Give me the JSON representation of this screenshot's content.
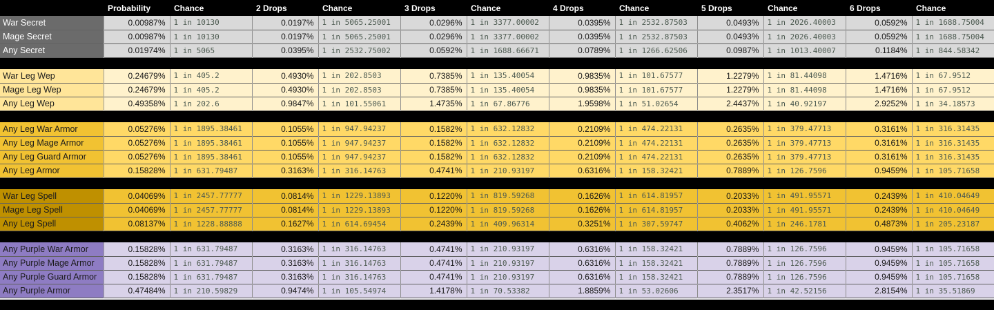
{
  "colors": {
    "page_background": "#000000",
    "header_bg": "#000000",
    "header_fg": "#ffffff",
    "percent_fg": "#161616",
    "chance_fg": "#4c5a50",
    "grid_line": "rgba(255,255,255,0.55)"
  },
  "table": {
    "columns": [
      "Probability",
      "Chance",
      "2 Drops",
      "Chance",
      "3 Drops",
      "Chance",
      "4 Drops",
      "Chance",
      "5 Drops",
      "Chance",
      "6 Drops",
      "Chance"
    ],
    "sections": [
      {
        "name": "secret",
        "label_bg": "#6b6b6b",
        "label_fg": "#ffffff",
        "data_bg": "#d9d9d9",
        "rows": [
          {
            "label": "War Secret",
            "cells": [
              "0.00987%",
              "1 in 10130",
              "0.0197%",
              "1 in 5065.25001",
              "0.0296%",
              "1 in 3377.00002",
              "0.0395%",
              "1 in 2532.87503",
              "0.0493%",
              "1 in 2026.40003",
              "0.0592%",
              "1 in 1688.75004"
            ]
          },
          {
            "label": "Mage Secret",
            "cells": [
              "0.00987%",
              "1 in 10130",
              "0.0197%",
              "1 in 5065.25001",
              "0.0296%",
              "1 in 3377.00002",
              "0.0395%",
              "1 in 2532.87503",
              "0.0493%",
              "1 in 2026.40003",
              "0.0592%",
              "1 in 1688.75004"
            ]
          },
          {
            "label": "Any Secret",
            "cells": [
              "0.01974%",
              "1 in 5065",
              "0.0395%",
              "1 in 2532.75002",
              "0.0592%",
              "1 in 1688.66671",
              "0.0789%",
              "1 in 1266.62506",
              "0.0987%",
              "1 in 1013.40007",
              "0.1184%",
              "1 in 844.58342"
            ]
          }
        ]
      },
      {
        "name": "leg-wep",
        "label_bg": "#ffe599",
        "label_fg": "#1b1b1b",
        "data_bg": "#fff2cc",
        "rows": [
          {
            "label": "War Leg Wep",
            "cells": [
              "0.24679%",
              "1 in 405.2",
              "0.4930%",
              "1 in 202.8503",
              "0.7385%",
              "1 in 135.40054",
              "0.9835%",
              "1 in 101.67577",
              "1.2279%",
              "1 in 81.44098",
              "1.4716%",
              "1 in 67.9512"
            ]
          },
          {
            "label": "Mage Leg Wep",
            "cells": [
              "0.24679%",
              "1 in 405.2",
              "0.4930%",
              "1 in 202.8503",
              "0.7385%",
              "1 in 135.40054",
              "0.9835%",
              "1 in 101.67577",
              "1.2279%",
              "1 in 81.44098",
              "1.4716%",
              "1 in 67.9512"
            ]
          },
          {
            "label": "Any Leg Wep",
            "cells": [
              "0.49358%",
              "1 in 202.6",
              "0.9847%",
              "1 in 101.55061",
              "1.4735%",
              "1 in 67.86776",
              "1.9598%",
              "1 in 51.02654",
              "2.4437%",
              "1 in 40.92197",
              "2.9252%",
              "1 in 34.18573"
            ]
          }
        ]
      },
      {
        "name": "leg-armor",
        "label_bg": "#f1c232",
        "label_fg": "#1b1b1b",
        "data_bg": "#ffd966",
        "rows": [
          {
            "label": "Any Leg War Armor",
            "cells": [
              "0.05276%",
              "1 in 1895.38461",
              "0.1055%",
              "1 in 947.94237",
              "0.1582%",
              "1 in 632.12832",
              "0.2109%",
              "1 in 474.22131",
              "0.2635%",
              "1 in 379.47713",
              "0.3161%",
              "1 in 316.31435"
            ]
          },
          {
            "label": "Any Leg Mage Armor",
            "cells": [
              "0.05276%",
              "1 in 1895.38461",
              "0.1055%",
              "1 in 947.94237",
              "0.1582%",
              "1 in 632.12832",
              "0.2109%",
              "1 in 474.22131",
              "0.2635%",
              "1 in 379.47713",
              "0.3161%",
              "1 in 316.31435"
            ]
          },
          {
            "label": "Any Leg Guard Armor",
            "cells": [
              "0.05276%",
              "1 in 1895.38461",
              "0.1055%",
              "1 in 947.94237",
              "0.1582%",
              "1 in 632.12832",
              "0.2109%",
              "1 in 474.22131",
              "0.2635%",
              "1 in 379.47713",
              "0.3161%",
              "1 in 316.31435"
            ]
          },
          {
            "label": "Any Leg Armor",
            "cells": [
              "0.15828%",
              "1 in 631.79487",
              "0.3163%",
              "1 in 316.14763",
              "0.4741%",
              "1 in 210.93197",
              "0.6316%",
              "1 in 158.32421",
              "0.7889%",
              "1 in 126.7596",
              "0.9459%",
              "1 in 105.71658"
            ]
          }
        ]
      },
      {
        "name": "leg-spell",
        "label_bg": "#bf9000",
        "label_fg": "#1b1b1b",
        "data_bg": "#f1c232",
        "rows": [
          {
            "label": "War Leg Spell",
            "cells": [
              "0.04069%",
              "1 in 2457.77777",
              "0.0814%",
              "1 in 1229.13893",
              "0.1220%",
              "1 in 819.59268",
              "0.1626%",
              "1 in 614.81957",
              "0.2033%",
              "1 in 491.95571",
              "0.2439%",
              "1 in 410.04649"
            ]
          },
          {
            "label": "Mage Leg Spell",
            "cells": [
              "0.04069%",
              "1 in 2457.77777",
              "0.0814%",
              "1 in 1229.13893",
              "0.1220%",
              "1 in 819.59268",
              "0.1626%",
              "1 in 614.81957",
              "0.2033%",
              "1 in 491.95571",
              "0.2439%",
              "1 in 410.04649"
            ]
          },
          {
            "label": "Any Leg Spell",
            "cells": [
              "0.08137%",
              "1 in 1228.88888",
              "0.1627%",
              "1 in 614.69454",
              "0.2439%",
              "1 in 409.96314",
              "0.3251%",
              "1 in 307.59747",
              "0.4062%",
              "1 in 246.1781",
              "0.4873%",
              "1 in 205.23187"
            ]
          }
        ]
      },
      {
        "name": "purple-armor",
        "label_bg": "#8e7cc3",
        "label_fg": "#1b1b1b",
        "data_bg": "#d9d2e9",
        "rows": [
          {
            "label": "Any Purple War Armor",
            "cells": [
              "0.15828%",
              "1 in 631.79487",
              "0.3163%",
              "1 in 316.14763",
              "0.4741%",
              "1 in 210.93197",
              "0.6316%",
              "1 in 158.32421",
              "0.7889%",
              "1 in 126.7596",
              "0.9459%",
              "1 in 105.71658"
            ]
          },
          {
            "label": "Any Purple Mage Armor",
            "cells": [
              "0.15828%",
              "1 in 631.79487",
              "0.3163%",
              "1 in 316.14763",
              "0.4741%",
              "1 in 210.93197",
              "0.6316%",
              "1 in 158.32421",
              "0.7889%",
              "1 in 126.7596",
              "0.9459%",
              "1 in 105.71658"
            ]
          },
          {
            "label": "Any Purple Guard Armor",
            "cells": [
              "0.15828%",
              "1 in 631.79487",
              "0.3163%",
              "1 in 316.14763",
              "0.4741%",
              "1 in 210.93197",
              "0.6316%",
              "1 in 158.32421",
              "0.7889%",
              "1 in 126.7596",
              "0.9459%",
              "1 in 105.71658"
            ]
          },
          {
            "label": "Any Purple Armor",
            "cells": [
              "0.47484%",
              "1 in 210.59829",
              "0.9474%",
              "1 in 105.54974",
              "1.4178%",
              "1 in 70.53382",
              "1.8859%",
              "1 in 53.02606",
              "2.3517%",
              "1 in 42.52156",
              "2.8154%",
              "1 in 35.51869"
            ]
          }
        ]
      }
    ]
  }
}
